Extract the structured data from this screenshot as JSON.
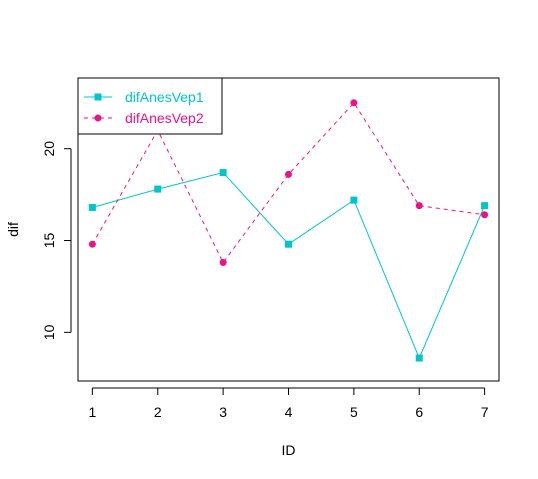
{
  "chart_data": {
    "type": "line",
    "xlabel": "ID",
    "ylabel": "dif",
    "x": [
      1,
      2,
      3,
      4,
      5,
      6,
      7
    ],
    "xticks": [
      1,
      2,
      3,
      4,
      5,
      6,
      7
    ],
    "yticks": [
      10,
      15,
      20
    ],
    "xlim": [
      0.78,
      7.22
    ],
    "ylim": [
      7.35,
      23.85
    ],
    "series": [
      {
        "name": "difAnesVep1",
        "color": "#00C5CD",
        "line_style": "solid",
        "marker": "square",
        "values": [
          16.8,
          17.8,
          18.7,
          14.8,
          17.2,
          8.6,
          16.9
        ]
      },
      {
        "name": "difAnesVep2",
        "color": "#EE1289",
        "line_style": "dashed",
        "marker": "circle",
        "values": [
          14.8,
          21.0,
          13.8,
          18.6,
          22.5,
          16.9,
          16.4
        ]
      }
    ],
    "legend": "top-left",
    "grid": false
  }
}
